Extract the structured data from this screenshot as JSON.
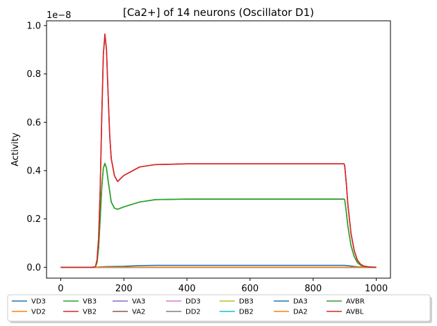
{
  "chart_data": {
    "type": "line",
    "title": "[Ca2+] of 14 neurons (Oscillator D1)",
    "xlabel": "",
    "ylabel": "Activity",
    "y_scale_label": "1e−8",
    "xlim": [
      -45,
      1045
    ],
    "ylim": [
      -0.045,
      1.02
    ],
    "y_unit_multiplier": 1e-08,
    "x_ticks": [
      0,
      200,
      400,
      600,
      800,
      1000
    ],
    "x_tick_labels": [
      "0",
      "200",
      "400",
      "600",
      "800",
      "1000"
    ],
    "y_ticks": [
      0.0,
      0.2,
      0.4,
      0.6,
      0.8,
      1.0
    ],
    "y_tick_labels": [
      "0.0",
      "0.2",
      "0.4",
      "0.6",
      "0.8",
      "1.0"
    ],
    "grid": false,
    "legend_placement": "below plot, 7 columns",
    "series": [
      {
        "name": "VD3",
        "color": "#1f77b4",
        "x": [
          0,
          110,
          130,
          150,
          200,
          250,
          300,
          400,
          600,
          800,
          880,
          900,
          920,
          940,
          960,
          980,
          1000
        ],
        "y": [
          0,
          0,
          0.002,
          0.003,
          0.004,
          0.007,
          0.008,
          0.008,
          0.008,
          0.008,
          0.008,
          0.008,
          0.005,
          0.002,
          0.001,
          0,
          0
        ]
      },
      {
        "name": "VD2",
        "color": "#ff7f0e",
        "x": [
          0,
          1000
        ],
        "y": [
          0,
          0
        ]
      },
      {
        "name": "VB3",
        "color": "#2ca02c",
        "x": [
          0,
          100,
          110,
          115,
          120,
          125,
          130,
          135,
          140,
          145,
          150,
          160,
          170,
          180,
          200,
          250,
          300,
          400,
          600,
          800,
          898,
          900,
          905,
          910,
          920,
          930,
          940,
          950,
          960,
          980,
          1000
        ],
        "y": [
          0,
          0,
          0.002,
          0.02,
          0.08,
          0.2,
          0.33,
          0.41,
          0.43,
          0.41,
          0.36,
          0.27,
          0.245,
          0.24,
          0.25,
          0.27,
          0.28,
          0.282,
          0.282,
          0.282,
          0.282,
          0.28,
          0.23,
          0.17,
          0.09,
          0.045,
          0.02,
          0.009,
          0.003,
          0,
          0
        ]
      },
      {
        "name": "VB2",
        "color": "#d62728",
        "x": [
          0,
          100,
          110,
          115,
          120,
          125,
          130,
          135,
          140,
          145,
          150,
          155,
          160,
          170,
          180,
          200,
          250,
          300,
          400,
          600,
          800,
          898,
          900,
          905,
          910,
          920,
          930,
          940,
          950,
          960,
          980,
          1000
        ],
        "y": [
          0,
          0,
          0.002,
          0.03,
          0.12,
          0.32,
          0.62,
          0.88,
          0.965,
          0.9,
          0.72,
          0.55,
          0.45,
          0.38,
          0.355,
          0.38,
          0.415,
          0.425,
          0.428,
          0.428,
          0.428,
          0.428,
          0.42,
          0.35,
          0.26,
          0.14,
          0.07,
          0.03,
          0.013,
          0.005,
          0.001,
          0
        ]
      },
      {
        "name": "VA3",
        "color": "#9467bd",
        "x": [
          0,
          1000
        ],
        "y": [
          0,
          0
        ]
      },
      {
        "name": "VA2",
        "color": "#8c564b",
        "x": [
          0,
          1000
        ],
        "y": [
          0,
          0
        ]
      },
      {
        "name": "DD3",
        "color": "#e377c2",
        "x": [
          0,
          1000
        ],
        "y": [
          0,
          0
        ]
      },
      {
        "name": "DD2",
        "color": "#7f7f7f",
        "x": [
          0,
          1000
        ],
        "y": [
          0,
          0
        ]
      },
      {
        "name": "DB3",
        "color": "#bcbd22",
        "x": [
          0,
          1000
        ],
        "y": [
          0,
          0
        ]
      },
      {
        "name": "DB2",
        "color": "#17becf",
        "x": [
          0,
          1000
        ],
        "y": [
          0,
          0
        ]
      },
      {
        "name": "DA3",
        "color": "#1f77b4",
        "x": [
          0,
          1000
        ],
        "y": [
          0,
          0
        ]
      },
      {
        "name": "DA2",
        "color": "#ff7f0e",
        "x": [
          0,
          1000
        ],
        "y": [
          0,
          0
        ]
      },
      {
        "name": "AVBR",
        "color": "#2ca02c",
        "x": [
          0,
          100,
          110,
          115,
          120,
          125,
          130,
          135,
          140,
          145,
          150,
          160,
          170,
          180,
          200,
          250,
          300,
          400,
          600,
          800,
          898,
          900,
          905,
          910,
          920,
          930,
          940,
          950,
          960,
          980,
          1000
        ],
        "y": [
          0,
          0,
          0.002,
          0.02,
          0.08,
          0.2,
          0.33,
          0.41,
          0.43,
          0.41,
          0.36,
          0.27,
          0.245,
          0.24,
          0.25,
          0.27,
          0.28,
          0.282,
          0.282,
          0.282,
          0.282,
          0.28,
          0.23,
          0.17,
          0.09,
          0.045,
          0.02,
          0.009,
          0.003,
          0,
          0
        ]
      },
      {
        "name": "AVBL",
        "color": "#d62728",
        "x": [
          0,
          100,
          110,
          115,
          120,
          125,
          130,
          135,
          140,
          145,
          150,
          155,
          160,
          170,
          180,
          200,
          250,
          300,
          400,
          600,
          800,
          898,
          900,
          905,
          910,
          920,
          930,
          940,
          950,
          960,
          980,
          1000
        ],
        "y": [
          0,
          0,
          0.002,
          0.03,
          0.12,
          0.32,
          0.62,
          0.88,
          0.965,
          0.9,
          0.72,
          0.55,
          0.45,
          0.38,
          0.355,
          0.38,
          0.415,
          0.425,
          0.428,
          0.428,
          0.428,
          0.428,
          0.42,
          0.35,
          0.26,
          0.14,
          0.07,
          0.03,
          0.013,
          0.005,
          0.001,
          0
        ]
      }
    ]
  }
}
